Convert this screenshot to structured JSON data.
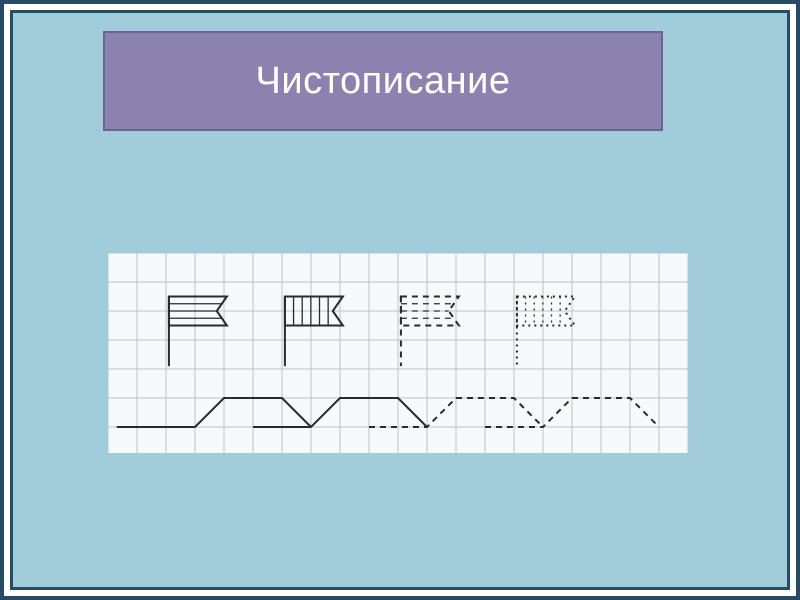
{
  "slide": {
    "title": "Чистописание",
    "outer_border_color": "#274b64",
    "inner_bg_color": "#ffffff",
    "slide_bg_color": "#a0cdd9",
    "title_box": {
      "bg_color": "#8b82b0",
      "border_color": "#6d6196",
      "text_color": "#ffffff",
      "font_size": 38
    },
    "worksheet": {
      "type": "infographic",
      "bg_color": "#f8f9fb",
      "grid_color": "#b8c2cc",
      "grid_cell": 29,
      "cols": 20,
      "rows": 7,
      "stroke_color": "#2a2a2a",
      "flags": [
        {
          "col": 2.1,
          "row": 1.5,
          "fill_style": "horizontal",
          "line_style": "solid"
        },
        {
          "col": 6.1,
          "row": 1.5,
          "fill_style": "vertical",
          "line_style": "solid"
        },
        {
          "col": 10.1,
          "row": 1.5,
          "fill_style": "horizontal",
          "line_style": "dashed"
        },
        {
          "col": 14.1,
          "row": 1.5,
          "fill_style": "vertical",
          "line_style": "dotted"
        }
      ],
      "wave": {
        "baseline_row": 6.0,
        "top_row": 5.0,
        "segments": [
          {
            "start_col": 1.0,
            "style": "solid"
          },
          {
            "start_col": 5.0,
            "style": "solid"
          },
          {
            "start_col": 9.0,
            "style": "dashed"
          },
          {
            "start_col": 13.0,
            "style": "dashed"
          }
        ],
        "flat_len": 2.0,
        "slope_len": 1.0
      }
    }
  }
}
